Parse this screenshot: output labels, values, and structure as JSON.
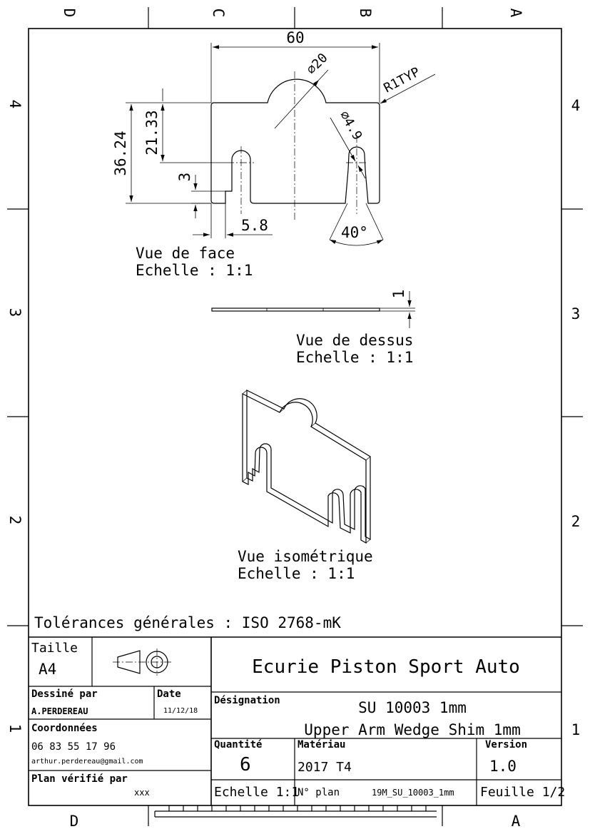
{
  "frame": {
    "col_labels_top": [
      "D",
      "C",
      "B",
      "A"
    ],
    "col_labels_bottom": [
      "D",
      "A"
    ],
    "row_labels": [
      "4",
      "3",
      "2",
      "1"
    ]
  },
  "front_view": {
    "title": "Vue de face",
    "scale": "Echelle :  1:1",
    "dims": {
      "width": "60",
      "diameter_top": "∅20",
      "corner_radius": "R1TYP",
      "height_total": "36.24",
      "height_partial": "21.33",
      "slot_width": "3",
      "slot_offset": "5.8",
      "hole_diameter": "∅4.9",
      "angle": "40°"
    }
  },
  "top_view": {
    "title": "Vue de dessus",
    "scale": "Echelle :  1:1",
    "thickness": "1"
  },
  "iso_view": {
    "title": "Vue isométrique",
    "scale": "Echelle :  1:1"
  },
  "tolerances": "Tolérances générales : ISO 2768-mK",
  "title_block": {
    "size_label": "Taille",
    "size_value": "A4",
    "company": "Ecurie Piston Sport Auto",
    "drawn_by_label": "Dessiné par",
    "drawn_by_value": "A.PERDEREAU",
    "date_label": "Date",
    "date_value": "11/12/18",
    "designation_label": "Désignation",
    "designation_line1": "SU 10003 1mm",
    "designation_line2": "Upper Arm Wedge Shim 1mm",
    "contact_label": "Coordonnées",
    "phone": "06 83 55 17 96",
    "email": "arthur.perdereau@gmail.com",
    "quantity_label": "Quantité",
    "quantity_value": "6",
    "material_label": "Matériau",
    "material_value": "2017 T4",
    "version_label": "Version",
    "version_value": "1.0",
    "checked_by_label": "Plan vérifié par",
    "checked_by_value": "xxx",
    "scale_text": "Echelle 1:1",
    "plan_label": "N° plan",
    "plan_value": "19M_SU_10003_1mm",
    "sheet_text": "Feuille 1/2"
  }
}
